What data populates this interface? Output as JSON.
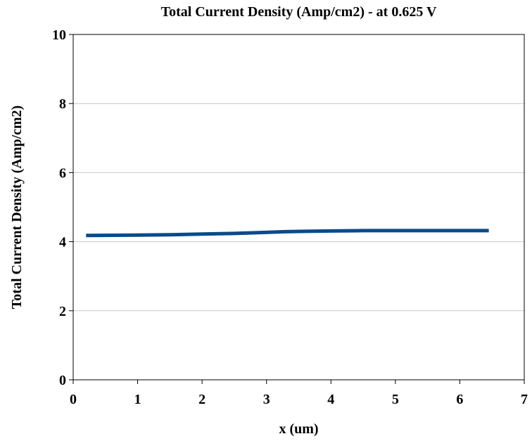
{
  "chart_data": {
    "type": "line",
    "title": "Total Current Density (Amp/cm2) - at 0.625 V",
    "xlabel": "x (um)",
    "ylabel": "Total Current Density (Amp/cm2)",
    "xlim": [
      0,
      7
    ],
    "ylim": [
      0,
      10
    ],
    "x_ticks": [
      0,
      1,
      2,
      3,
      4,
      5,
      6,
      7
    ],
    "y_ticks": [
      0,
      2,
      4,
      6,
      8,
      10
    ],
    "grid": "horizontal",
    "legend": "none",
    "series": [
      {
        "color": "#0a4a8a",
        "points": [
          [
            0.2,
            4.18
          ],
          [
            1.0,
            4.19
          ],
          [
            1.5,
            4.2
          ],
          [
            2.0,
            4.22
          ],
          [
            2.5,
            4.24
          ],
          [
            3.0,
            4.27
          ],
          [
            3.3,
            4.29
          ],
          [
            3.6,
            4.3
          ],
          [
            4.0,
            4.31
          ],
          [
            4.5,
            4.32
          ],
          [
            5.0,
            4.32
          ],
          [
            5.5,
            4.32
          ],
          [
            6.0,
            4.32
          ],
          [
            6.45,
            4.32
          ]
        ]
      }
    ]
  }
}
